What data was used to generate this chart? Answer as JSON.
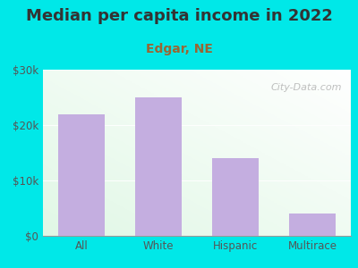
{
  "title": "Median per capita income in 2022",
  "subtitle": "Edgar, NE",
  "categories": [
    "All",
    "White",
    "Hispanic",
    "Multirace"
  ],
  "values": [
    22000,
    25000,
    14000,
    4000
  ],
  "bar_color": "#c4aee0",
  "outer_bg": "#00e8e8",
  "title_color": "#333333",
  "subtitle_color": "#996633",
  "tick_color": "#555555",
  "ylim": [
    0,
    30000
  ],
  "yticks": [
    0,
    10000,
    20000,
    30000
  ],
  "ytick_labels": [
    "$0",
    "$10k",
    "$20k",
    "$30k"
  ],
  "watermark": "City-Data.com",
  "title_fontsize": 13,
  "subtitle_fontsize": 10,
  "grid_color": "#dddddd"
}
